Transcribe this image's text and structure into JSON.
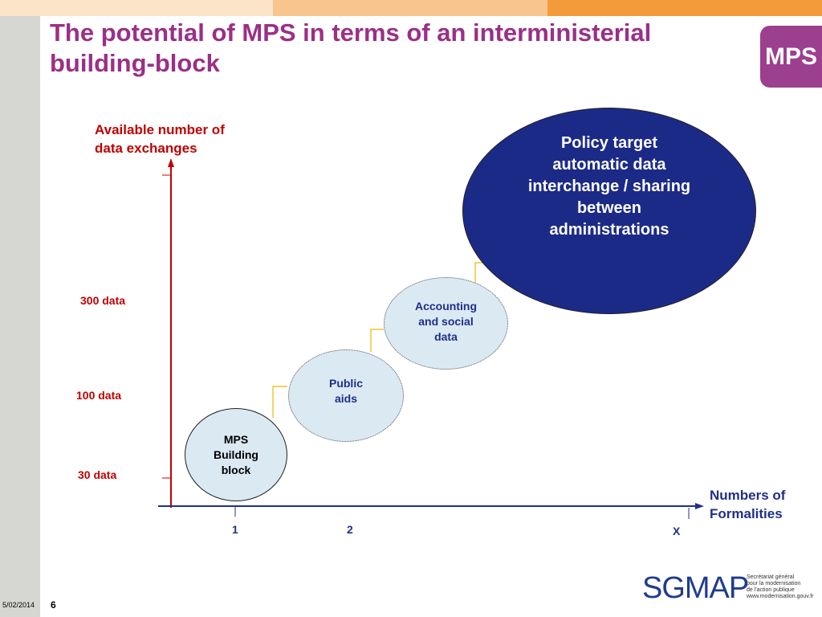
{
  "slide": {
    "title_line1": "The potential of MPS in terms of an interministerial",
    "title_line2": "building-block",
    "logo_text": "MPS",
    "date": "5/02/2014",
    "page_number": "6"
  },
  "colors": {
    "title": "#9b2f86",
    "axis": "#c00000",
    "axis_x": "#1f2f8a",
    "policy_fill": "#1c2a87",
    "bubble_fill": "#dbe9f3",
    "step_line": "#f2b400",
    "topbar": [
      "#fce4c8",
      "#f9c58e",
      "#f39a3a"
    ]
  },
  "diagram": {
    "y_axis_title": [
      "Available number of",
      "data exchanges"
    ],
    "x_axis_title": [
      "Numbers of",
      "Formalities"
    ],
    "y_ticks": [
      "300 data",
      "100 data",
      "30 data"
    ],
    "x_ticks": [
      "1",
      "2",
      "X"
    ],
    "bubbles": {
      "mps": [
        "MPS",
        "Building",
        "block"
      ],
      "public_aids": [
        "Public",
        "aids"
      ],
      "accounting": [
        "Accounting",
        "and social",
        "data"
      ],
      "policy": [
        "Policy target",
        "automatic data",
        "interchange / sharing",
        "between",
        "administrations"
      ]
    }
  },
  "footer": {
    "sgmap_word": "SGMAP",
    "sgmap_tagline": [
      "Secrétariat général",
      "pour la modernisation",
      "de l'action publique",
      "www.modernisation.gouv.fr"
    ]
  }
}
